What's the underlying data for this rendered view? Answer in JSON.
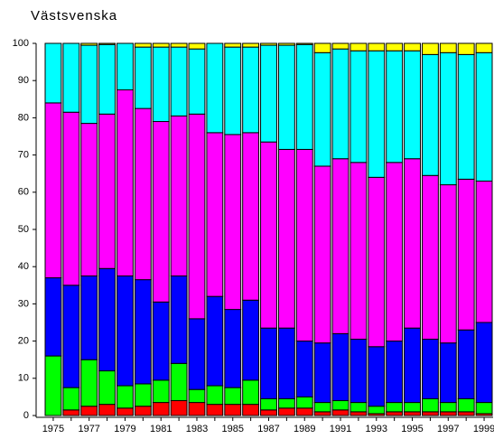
{
  "chart_data": {
    "type": "stacked_bar",
    "title": "Västsvenska",
    "categories": [
      "1975",
      null,
      "1977",
      null,
      "1979",
      null,
      "1981",
      null,
      "1983",
      null,
      "1985",
      null,
      "1987",
      null,
      "1989",
      null,
      "1991",
      null,
      "1993",
      null,
      "1995",
      null,
      "1997",
      null,
      "1999"
    ],
    "series": [
      {
        "color": "#ff0000",
        "values": [
          0,
          1.5,
          2.5,
          3,
          2,
          2.5,
          3.5,
          4,
          3.5,
          3,
          3,
          3,
          1.5,
          2,
          2,
          1,
          1.5,
          1,
          0.5,
          1,
          1,
          1,
          1,
          1,
          0.5
        ]
      },
      {
        "color": "#00ff00",
        "values": [
          16,
          6,
          12.5,
          9,
          6,
          6,
          6,
          10,
          3.5,
          5,
          4.5,
          6.5,
          3,
          2.5,
          3,
          2.5,
          2.5,
          2.5,
          2,
          2.5,
          2.5,
          3.5,
          2.5,
          3.5,
          3
        ]
      },
      {
        "color": "#0000ff",
        "values": [
          21,
          27.5,
          22.5,
          27.5,
          29.5,
          28,
          21,
          23.5,
          19,
          24,
          21,
          21.5,
          19,
          19,
          15,
          16,
          18,
          17,
          16,
          16.5,
          20,
          16,
          16,
          18.5,
          21.5
        ]
      },
      {
        "color": "#ff00ff",
        "values": [
          47,
          46.5,
          41,
          41.5,
          50,
          46,
          48.5,
          43,
          55,
          44,
          47,
          45,
          50,
          48,
          51.5,
          47.5,
          47,
          47.5,
          45.5,
          48,
          45.5,
          44,
          42.5,
          40.5,
          38
        ]
      },
      {
        "color": "#00ffff",
        "values": [
          16,
          18.5,
          21,
          18.7,
          12.5,
          16.5,
          20,
          18.5,
          17.5,
          24,
          23.5,
          23,
          26,
          28,
          28.2,
          30.5,
          29.5,
          30,
          34,
          30,
          29,
          32.5,
          35.5,
          33.5,
          34.5
        ]
      },
      {
        "color": "#ffff00",
        "values": [
          0,
          0,
          0.5,
          0.3,
          0,
          1,
          1,
          1,
          1.5,
          0,
          1,
          1,
          0.5,
          0.5,
          0.3,
          2.5,
          1.5,
          2,
          2,
          2,
          2,
          3,
          2.5,
          3,
          2.5
        ]
      }
    ],
    "ylim": [
      0,
      100
    ],
    "yticks": [
      0,
      10,
      20,
      30,
      40,
      50,
      60,
      70,
      80,
      90,
      100
    ]
  }
}
